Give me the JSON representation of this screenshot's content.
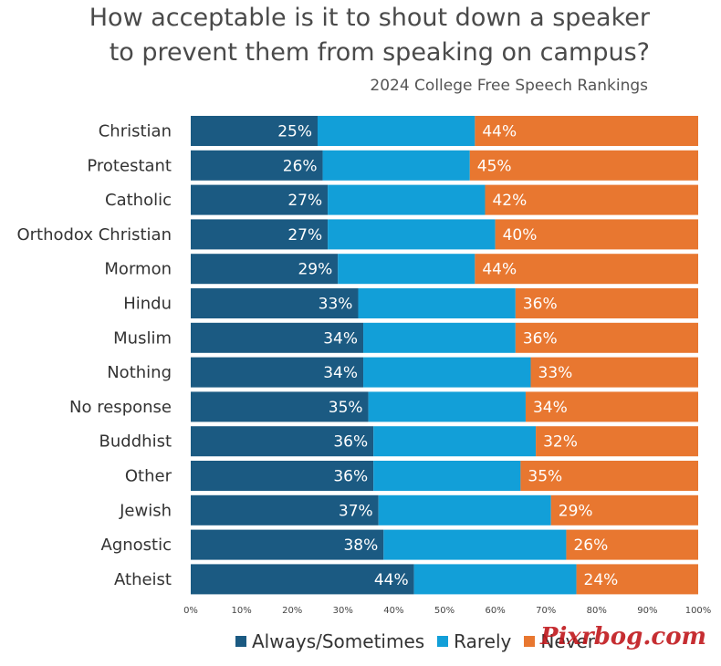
{
  "title_line1": "How acceptable is it to shout down a speaker",
  "title_line2": "to prevent them from speaking on campus?",
  "subtitle": "2024 College Free Speech Rankings",
  "watermark": "Pixrbog.com",
  "colors": {
    "always": "#1b5a82",
    "rarely": "#129fd8",
    "never": "#e87730"
  },
  "chart_data": {
    "type": "bar",
    "orientation": "horizontal",
    "stacked": true,
    "categories": [
      "Christian",
      "Protestant",
      "Catholic",
      "Orthodox Christian",
      "Mormon",
      "Hindu",
      "Muslim",
      "Nothing",
      "No response",
      "Buddhist",
      "Other",
      "Jewish",
      "Agnostic",
      "Atheist"
    ],
    "series": [
      {
        "name": "Always/Sometimes",
        "values": [
          25,
          26,
          27,
          27,
          29,
          33,
          34,
          34,
          35,
          36,
          36,
          37,
          38,
          44
        ],
        "labels": [
          "25%",
          "26%",
          "27%",
          "27%",
          "29%",
          "33%",
          "34%",
          "34%",
          "35%",
          "36%",
          "36%",
          "37%",
          "38%",
          "44%"
        ]
      },
      {
        "name": "Rarely",
        "values": [
          31,
          29,
          31,
          33,
          27,
          31,
          30,
          33,
          31,
          32,
          29,
          34,
          36,
          32
        ]
      },
      {
        "name": "Never",
        "values": [
          44,
          45,
          42,
          40,
          44,
          36,
          36,
          33,
          34,
          32,
          35,
          29,
          26,
          24
        ],
        "labels": [
          "44%",
          "45%",
          "42%",
          "40%",
          "44%",
          "36%",
          "36%",
          "33%",
          "34%",
          "32%",
          "35%",
          "29%",
          "26%",
          "24%"
        ]
      }
    ],
    "xlim": [
      0,
      100
    ],
    "x_ticks": [
      "0%",
      "10%",
      "20%",
      "30%",
      "40%",
      "50%",
      "60%",
      "70%",
      "80%",
      "90%",
      "100%"
    ],
    "grid": false,
    "legend": "bottom"
  }
}
